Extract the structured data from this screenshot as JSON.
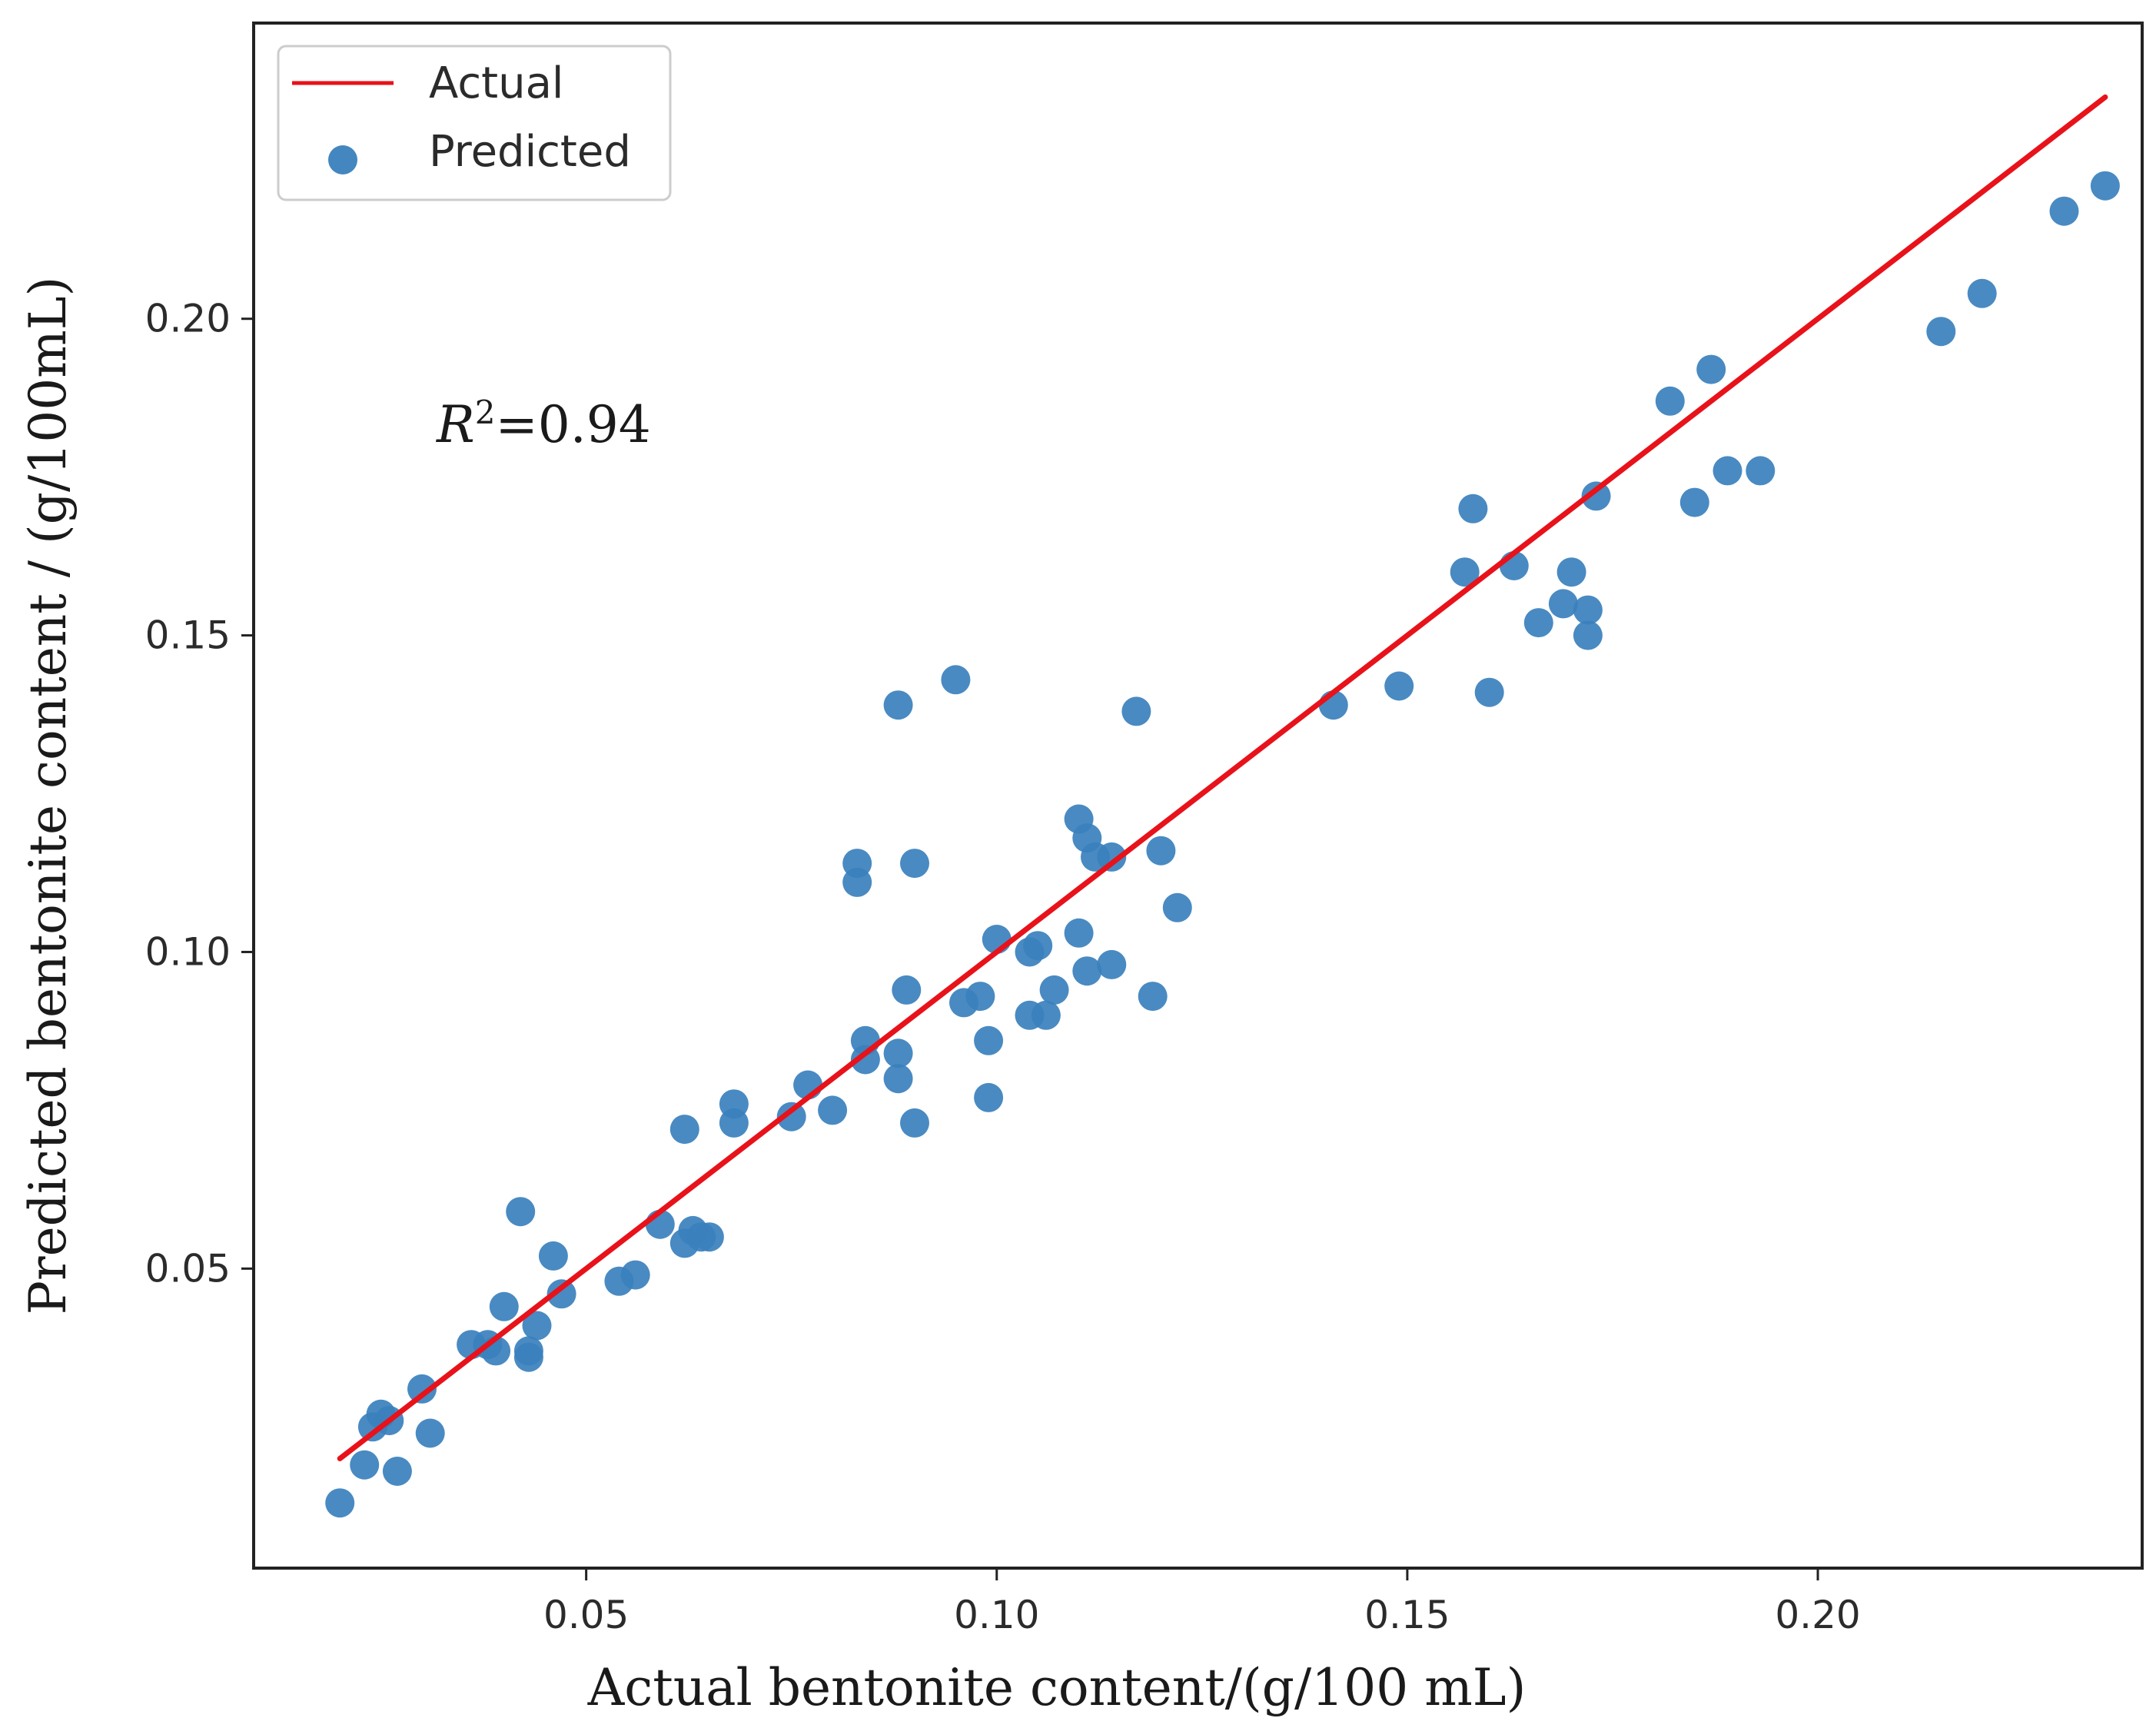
{
  "chart_data": {
    "type": "scatter",
    "title": "",
    "xlabel": "Actual bentonite content/(g/100 mL)",
    "ylabel": "Predicted bentonite content / (g/100mL)",
    "xlim": [
      0.0095,
      0.2395
    ],
    "ylim": [
      0.0027,
      0.2467
    ],
    "x_ticks": [
      0.05,
      0.1,
      0.15,
      0.2
    ],
    "x_tick_labels": [
      "0.05",
      "0.10",
      "0.15",
      "0.20"
    ],
    "y_ticks": [
      0.05,
      0.1,
      0.15,
      0.2
    ],
    "y_tick_labels": [
      "0.05",
      "0.10",
      "0.15",
      "0.20"
    ],
    "grid": false,
    "legend": {
      "position": "top-left",
      "entries": [
        {
          "label": "Actual",
          "kind": "line",
          "color": "#e8121a"
        },
        {
          "label": "Predicted",
          "kind": "marker",
          "color": "#3a80bd"
        }
      ]
    },
    "annotation": {
      "symbol": "R",
      "superscript": "2",
      "text": "=0.94"
    },
    "series": [
      {
        "name": "Actual",
        "kind": "line",
        "color": "#e8121a",
        "x": [
          0.02,
          0.235
        ],
        "y": [
          0.02,
          0.235
        ]
      },
      {
        "name": "Predicted",
        "kind": "scatter",
        "color": "#3a80bd",
        "points": [
          [
            0.02,
            0.013
          ],
          [
            0.023,
            0.019
          ],
          [
            0.024,
            0.025
          ],
          [
            0.025,
            0.027
          ],
          [
            0.026,
            0.026
          ],
          [
            0.027,
            0.018
          ],
          [
            0.03,
            0.031
          ],
          [
            0.031,
            0.024
          ],
          [
            0.036,
            0.038
          ],
          [
            0.038,
            0.038
          ],
          [
            0.039,
            0.037
          ],
          [
            0.04,
            0.044
          ],
          [
            0.042,
            0.059
          ],
          [
            0.043,
            0.036
          ],
          [
            0.043,
            0.037
          ],
          [
            0.044,
            0.041
          ],
          [
            0.046,
            0.052
          ],
          [
            0.047,
            0.046
          ],
          [
            0.054,
            0.048
          ],
          [
            0.056,
            0.049
          ],
          [
            0.059,
            0.057
          ],
          [
            0.062,
            0.072
          ],
          [
            0.062,
            0.054
          ],
          [
            0.063,
            0.056
          ],
          [
            0.064,
            0.055
          ],
          [
            0.065,
            0.055
          ],
          [
            0.068,
            0.076
          ],
          [
            0.068,
            0.073
          ],
          [
            0.075,
            0.074
          ],
          [
            0.077,
            0.079
          ],
          [
            0.08,
            0.075
          ],
          [
            0.083,
            0.114
          ],
          [
            0.083,
            0.111
          ],
          [
            0.084,
            0.086
          ],
          [
            0.084,
            0.083
          ],
          [
            0.088,
            0.139
          ],
          [
            0.088,
            0.084
          ],
          [
            0.088,
            0.08
          ],
          [
            0.089,
            0.094
          ],
          [
            0.09,
            0.114
          ],
          [
            0.09,
            0.073
          ],
          [
            0.095,
            0.143
          ],
          [
            0.096,
            0.092
          ],
          [
            0.098,
            0.093
          ],
          [
            0.099,
            0.086
          ],
          [
            0.099,
            0.077
          ],
          [
            0.1,
            0.102
          ],
          [
            0.104,
            0.09
          ],
          [
            0.104,
            0.1
          ],
          [
            0.105,
            0.101
          ],
          [
            0.106,
            0.09
          ],
          [
            0.107,
            0.094
          ],
          [
            0.11,
            0.121
          ],
          [
            0.11,
            0.103
          ],
          [
            0.111,
            0.118
          ],
          [
            0.111,
            0.097
          ],
          [
            0.112,
            0.115
          ],
          [
            0.114,
            0.115
          ],
          [
            0.114,
            0.098
          ],
          [
            0.117,
            0.138
          ],
          [
            0.119,
            0.093
          ],
          [
            0.12,
            0.116
          ],
          [
            0.122,
            0.107
          ],
          [
            0.141,
            0.139
          ],
          [
            0.149,
            0.142
          ],
          [
            0.157,
            0.16
          ],
          [
            0.158,
            0.17
          ],
          [
            0.16,
            0.141
          ],
          [
            0.163,
            0.161
          ],
          [
            0.166,
            0.152
          ],
          [
            0.169,
            0.155
          ],
          [
            0.17,
            0.16
          ],
          [
            0.172,
            0.154
          ],
          [
            0.172,
            0.15
          ],
          [
            0.173,
            0.172
          ],
          [
            0.182,
            0.187
          ],
          [
            0.185,
            0.171
          ],
          [
            0.187,
            0.192
          ],
          [
            0.189,
            0.176
          ],
          [
            0.193,
            0.176
          ],
          [
            0.215,
            0.198
          ],
          [
            0.22,
            0.204
          ],
          [
            0.23,
            0.217
          ],
          [
            0.235,
            0.221
          ]
        ]
      }
    ]
  }
}
